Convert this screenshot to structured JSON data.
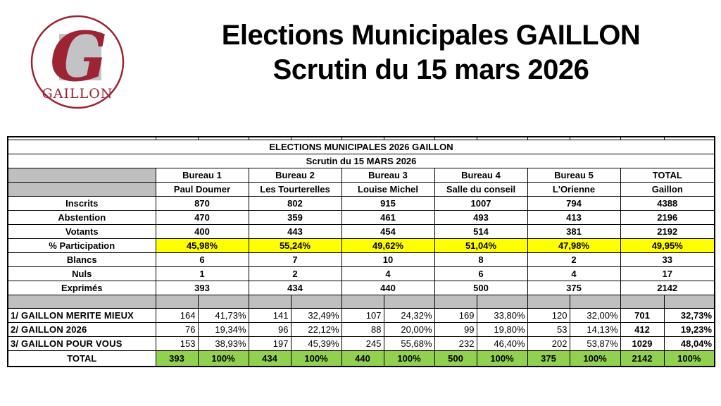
{
  "header": {
    "title_line1": "Elections Municipales GAILLON",
    "title_line2": "Scrutin du 15 mars 2026"
  },
  "logo": {
    "letter": "G",
    "text": "GAILLON",
    "red": "#9c2433",
    "gray": "#c3c2c6"
  },
  "table": {
    "title": "ELECTIONS MUNICIPALES 2026 GAILLON",
    "subtitle": "Scrutin du 15 MARS 2026",
    "bureaus": [
      {
        "label": "Bureau 1",
        "name": "Paul Doumer"
      },
      {
        "label": "Bureau 2",
        "name": "Les Tourterelles"
      },
      {
        "label": "Bureau 3",
        "name": "Louise Michel"
      },
      {
        "label": "Bureau 4",
        "name": "Salle du conseil"
      },
      {
        "label": "Bureau 5",
        "name": "L'Orienne"
      }
    ],
    "total_header": {
      "label": "TOTAL",
      "name": "Gaillon"
    },
    "stat_rows": [
      {
        "label": "Inscrits",
        "values": [
          "870",
          "802",
          "915",
          "1007",
          "794",
          "4388"
        ],
        "highlight": ""
      },
      {
        "label": "Abstention",
        "values": [
          "470",
          "359",
          "461",
          "493",
          "413",
          "2196"
        ],
        "highlight": ""
      },
      {
        "label": "Votants",
        "values": [
          "400",
          "443",
          "454",
          "514",
          "381",
          "2192"
        ],
        "highlight": ""
      },
      {
        "label": "% Participation",
        "values": [
          "45,98%",
          "55,24%",
          "49,62%",
          "51,04%",
          "47,98%",
          "49,95%"
        ],
        "highlight": "yellow"
      },
      {
        "label": "Blancs",
        "values": [
          "6",
          "7",
          "10",
          "8",
          "2",
          "33"
        ],
        "highlight": ""
      },
      {
        "label": "Nuls",
        "values": [
          "1",
          "2",
          "4",
          "6",
          "4",
          "17"
        ],
        "highlight": ""
      },
      {
        "label": "Exprimés",
        "values": [
          "393",
          "434",
          "440",
          "500",
          "375",
          "2142"
        ],
        "highlight": ""
      }
    ],
    "candidate_rows": [
      {
        "label": "1/ GAILLON MERITE MIEUX",
        "votes": [
          "164",
          "141",
          "107",
          "169",
          "120"
        ],
        "pcts": [
          "41,73%",
          "32,49%",
          "24,32%",
          "33,80%",
          "32,00%"
        ],
        "total_votes": "701",
        "total_pct": "32,73%"
      },
      {
        "label": "2/ GAILLON 2026",
        "votes": [
          "76",
          "96",
          "88",
          "99",
          "53"
        ],
        "pcts": [
          "19,34%",
          "22,12%",
          "20,00%",
          "19,80%",
          "14,13%"
        ],
        "total_votes": "412",
        "total_pct": "19,23%"
      },
      {
        "label": "3/ GAILLON POUR VOUS",
        "votes": [
          "153",
          "197",
          "245",
          "232",
          "202"
        ],
        "pcts": [
          "38,93%",
          "45,39%",
          "55,68%",
          "46,40%",
          "53,87%"
        ],
        "total_votes": "1029",
        "total_pct": "48,04%"
      }
    ],
    "total_row": {
      "label": "TOTAL",
      "votes": [
        "393",
        "434",
        "440",
        "500",
        "375"
      ],
      "pcts": [
        "100%",
        "100%",
        "100%",
        "100%",
        "100%"
      ],
      "total_votes": "2142",
      "total_pct": "100%"
    }
  },
  "colors": {
    "yellow": "#ffff00",
    "green": "#92d050",
    "gray": "#bfbfbf",
    "logo_red": "#9c2433"
  }
}
